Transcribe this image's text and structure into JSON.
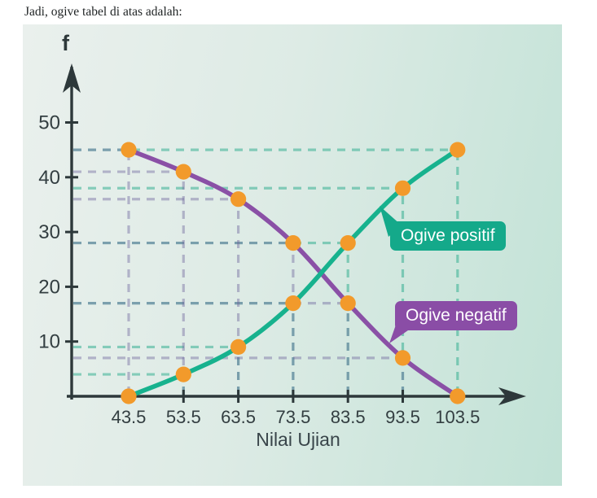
{
  "caption": "Jadi, ogive tabel di atas adalah:",
  "colors": {
    "panel_bg_left": "#eaf0ed",
    "panel_bg_right": "#c1e2d6",
    "axis": "#2d383a",
    "tick_text": "#333e41",
    "positive_curve": "#17b28e",
    "negative_curve": "#8a50a6",
    "positive_bubble": "#14a98a",
    "negative_bubble": "#8a4da6",
    "marker": "#f29a2b",
    "guide_teal": "rgba(38,170,138,0.50)",
    "guide_lavender": "rgba(112,102,158,0.44)"
  },
  "chart": {
    "y_axis_label": "f",
    "x_axis_label": "Nilai Ujian",
    "y_ticks": [
      10,
      20,
      30,
      40,
      50
    ],
    "x_ticks": [
      "43.5",
      "53.5",
      "63.5",
      "73.5",
      "83.5",
      "93.5",
      "103.5"
    ],
    "annotations": [
      {
        "label": "Ogive positif"
      },
      {
        "label": "Ogive negatif"
      }
    ]
  },
  "chart_data": {
    "type": "line",
    "title": "",
    "xlabel": "Nilai Ujian",
    "ylabel": "f",
    "x": [
      43.5,
      53.5,
      63.5,
      73.5,
      83.5,
      93.5,
      103.5
    ],
    "series": [
      {
        "name": "Ogive positif",
        "values": [
          0,
          4,
          9,
          17,
          28,
          38,
          45
        ]
      },
      {
        "name": "Ogive negatif",
        "values": [
          45,
          41,
          36,
          28,
          17,
          7,
          0
        ]
      }
    ],
    "xlim": [
      43.5,
      103.5
    ],
    "ylim": [
      0,
      50
    ],
    "grid": "dashed guide lines from each point to both axes",
    "legend_position": "in-plot speech bubbles",
    "marker": "filled orange circles on every point"
  }
}
